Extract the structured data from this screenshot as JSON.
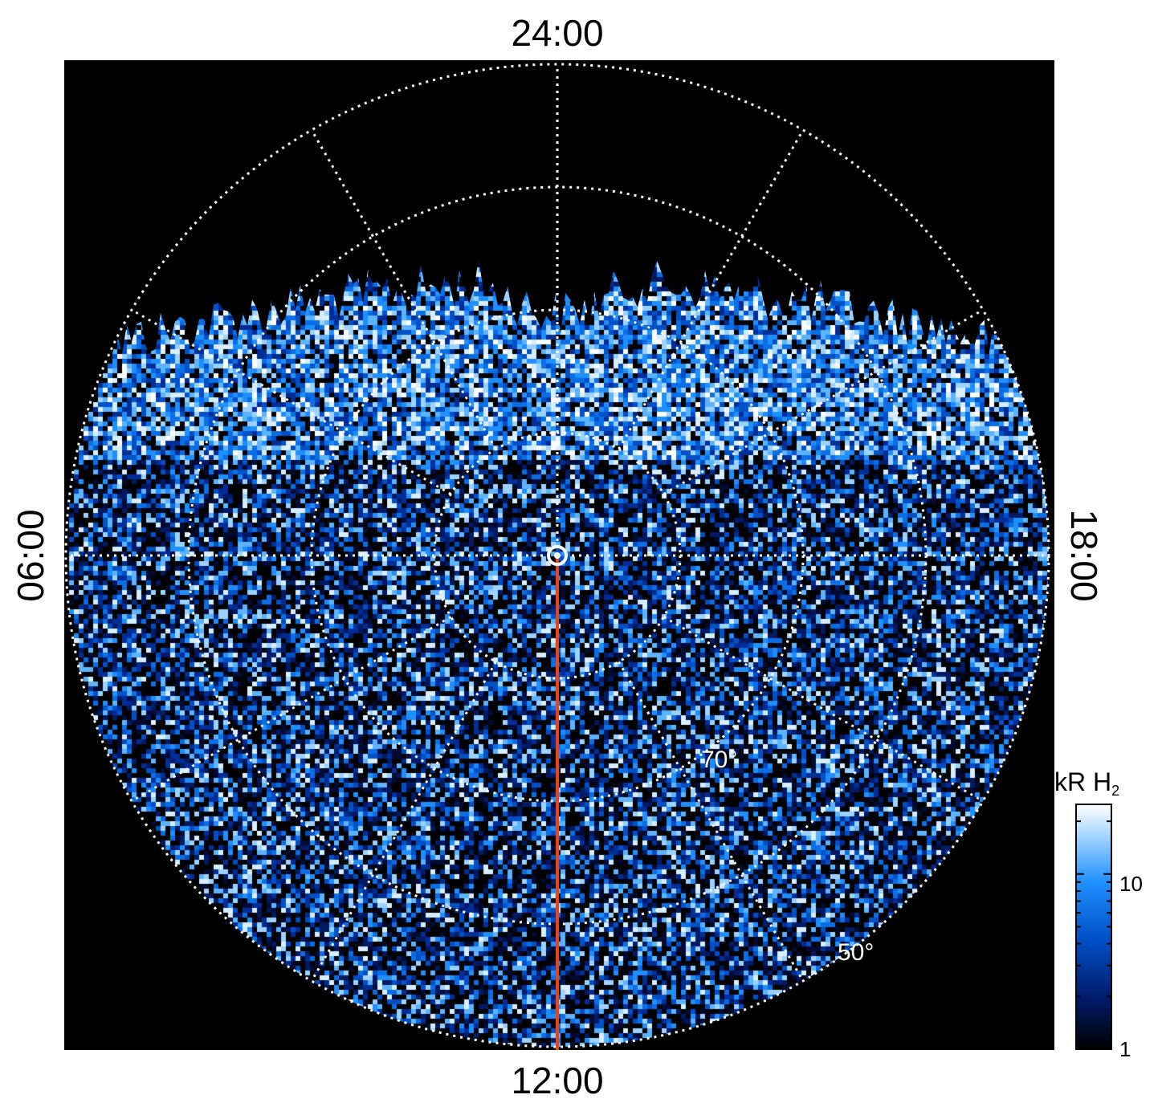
{
  "chart_data": {
    "type": "heatmap",
    "projection": "polar",
    "local_time_labels": {
      "top": "24:00",
      "bottom": "12:00",
      "left": "06:00",
      "right": "18:00"
    },
    "latitude_labels": [
      "70°",
      "50°"
    ],
    "grid_latitudes": [
      80,
      70,
      60,
      50
    ],
    "grid_meridian_step_hours": 2,
    "central_meridian_line_color": "#e8431a",
    "colorbar": {
      "title": "kR H",
      "title_subscript": "2",
      "scale": "log",
      "range": [
        1,
        25
      ],
      "ticks": [
        "1",
        "10"
      ],
      "colors": [
        "#000000",
        "#001a66",
        "#0050c8",
        "#1e8fff",
        "#9cd2ff",
        "#ffffff"
      ]
    },
    "background_color": "#000000",
    "grid_color": "#ffffff"
  }
}
